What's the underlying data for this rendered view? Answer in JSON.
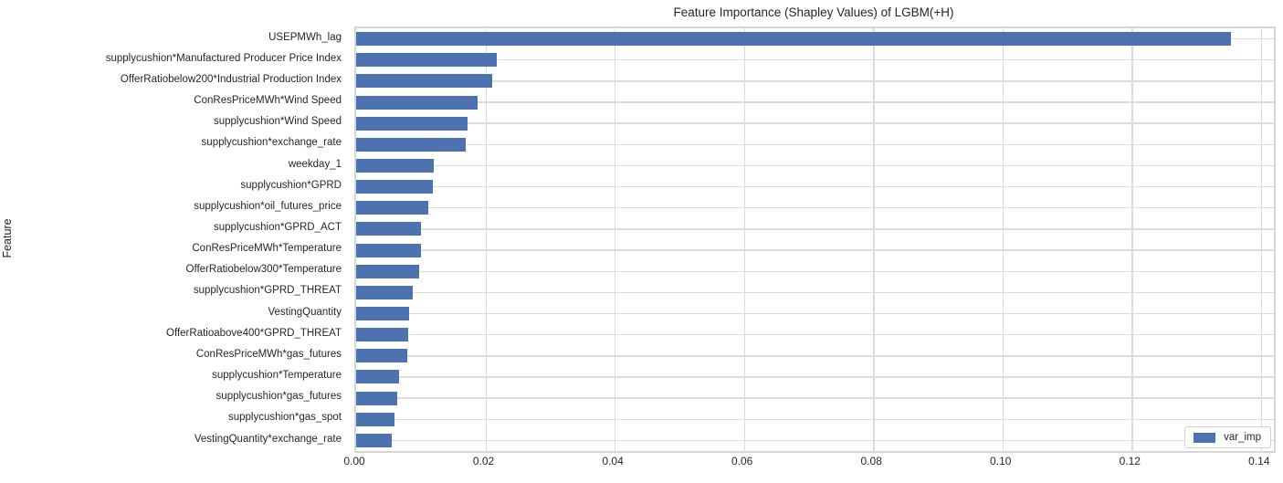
{
  "chart_data": {
    "type": "bar",
    "orientation": "horizontal",
    "title": "Feature Importance (Shapley Values) of LGBM(+H)",
    "xlabel": "",
    "ylabel": "Feature",
    "legend": {
      "label": "var_imp",
      "position": "lower right"
    },
    "xlim": [
      0,
      0.142
    ],
    "xticks": [
      0.0,
      0.02,
      0.04,
      0.06,
      0.08,
      0.1,
      0.12,
      0.14
    ],
    "grid": true,
    "colors": {
      "bar": "#4C72B0",
      "grid": "#dcdcdc",
      "spine": "#d6d6d6",
      "text": "#262626"
    },
    "categories": [
      "USEPMWh_lag",
      "supplycushion*Manufactured Producer Price Index",
      "OfferRatiobelow200*Industrial Production Index",
      "ConResPriceMWh*Wind Speed",
      "supplycushion*Wind Speed",
      "supplycushion*exchange_rate",
      "weekday_1",
      "supplycushion*GPRD",
      "supplycushion*oil_futures_price",
      "supplycushion*GPRD_ACT",
      "ConResPriceMWh*Temperature",
      "OfferRatiobelow300*Temperature",
      "supplycushion*GPRD_THREAT",
      "VestingQuantity",
      "OfferRatioabove400*GPRD_THREAT",
      "ConResPriceMWh*gas_futures",
      "supplycushion*Temperature",
      "supplycushion*gas_futures",
      "supplycushion*gas_spot",
      "VestingQuantity*exchange_rate"
    ],
    "values": [
      0.1354,
      0.0217,
      0.021,
      0.0188,
      0.0173,
      0.0169,
      0.012,
      0.0118,
      0.0111,
      0.01,
      0.01,
      0.0097,
      0.0087,
      0.0082,
      0.008,
      0.0079,
      0.0067,
      0.0064,
      0.006,
      0.0055
    ]
  }
}
